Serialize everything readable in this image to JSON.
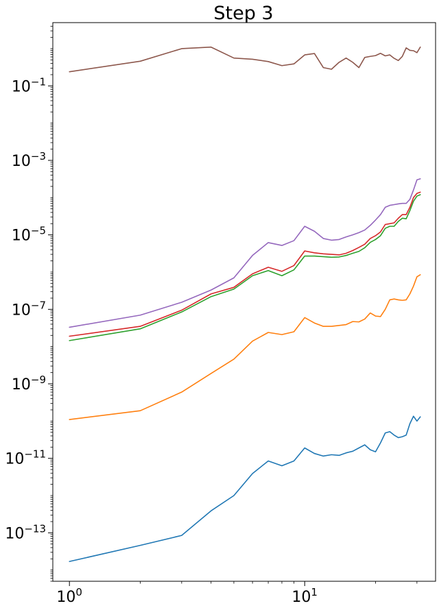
{
  "chart_data": {
    "type": "line",
    "title": "Step 3",
    "xlabel": "",
    "ylabel": "",
    "xscale": "log",
    "yscale": "log",
    "xlim": [
      0.85,
      36
    ],
    "ylim": [
      5e-15,
      5
    ],
    "grid": false,
    "legend": "none",
    "x_ticks": [
      {
        "value": 1,
        "base": "10",
        "exp": "0"
      },
      {
        "value": 10,
        "base": "10",
        "exp": "1"
      }
    ],
    "y_ticks": [
      {
        "value": 1e-13,
        "base": "10",
        "exp": "−13"
      },
      {
        "value": 1e-11,
        "base": "10",
        "exp": "−11"
      },
      {
        "value": 1e-09,
        "base": "10",
        "exp": "−9"
      },
      {
        "value": 1e-07,
        "base": "10",
        "exp": "−7"
      },
      {
        "value": 1e-05,
        "base": "10",
        "exp": "−5"
      },
      {
        "value": 0.001,
        "base": "10",
        "exp": "−3"
      },
      {
        "value": 0.1,
        "base": "10",
        "exp": "−1"
      }
    ],
    "x": [
      1,
      2,
      3,
      4,
      5,
      6,
      7,
      8,
      9,
      10,
      11,
      12,
      13,
      14,
      15,
      16,
      17,
      18,
      19,
      20,
      21,
      22,
      23,
      24,
      25,
      26,
      27,
      28,
      29,
      30,
      31
    ],
    "series": [
      {
        "color": "#1f77b4",
        "values": [
          1.7e-14,
          4.6e-14,
          8.5e-14,
          3.9e-13,
          1e-12,
          3.9e-12,
          8.5e-12,
          6.3e-12,
          8.5e-12,
          1.9e-11,
          1.35e-11,
          1.15e-11,
          1.25e-11,
          1.2e-11,
          1.4e-11,
          1.55e-11,
          1.9e-11,
          2.3e-11,
          1.7e-11,
          1.5e-11,
          2.6e-11,
          4.8e-11,
          5.2e-11,
          4.2e-11,
          3.6e-11,
          3.8e-11,
          4.2e-11,
          8.5e-11,
          1.35e-10,
          1e-10,
          1.3e-10
        ]
      },
      {
        "color": "#ff7f0e",
        "values": [
          1.1e-10,
          1.9e-10,
          6e-10,
          1.9e-09,
          4.6e-09,
          1.4e-08,
          2.4e-08,
          2.1e-08,
          2.5e-08,
          6e-08,
          4.3e-08,
          3.5e-08,
          3.5e-08,
          3.7e-08,
          3.9e-08,
          4.7e-08,
          4.6e-08,
          5.5e-08,
          8e-08,
          6.6e-08,
          6.4e-08,
          1e-07,
          1.8e-07,
          1.9e-07,
          1.8e-07,
          1.75e-07,
          1.8e-07,
          2.6e-07,
          4.2e-07,
          7.5e-07,
          8.5e-07
        ]
      },
      {
        "color": "#2ca02c",
        "values": [
          1.45e-08,
          3e-08,
          8.5e-08,
          2.2e-07,
          3.5e-07,
          8e-07,
          1.1e-06,
          8e-07,
          1.15e-06,
          2.7e-06,
          2.7e-06,
          2.6e-06,
          2.5e-06,
          2.55e-06,
          2.8e-06,
          3.2e-06,
          3.6e-06,
          4.5e-06,
          6.3e-06,
          7.5e-06,
          9.5e-06,
          1.5e-05,
          1.7e-05,
          1.7e-05,
          2.3e-05,
          2.8e-05,
          2.7e-05,
          4.5e-05,
          8e-05,
          0.00011,
          0.00012
        ]
      },
      {
        "color": "#d62728",
        "values": [
          1.9e-08,
          3.5e-08,
          9.5e-08,
          2.6e-07,
          3.9e-07,
          9e-07,
          1.35e-06,
          1.05e-06,
          1.5e-06,
          3.7e-06,
          3.3e-06,
          3.1e-06,
          3e-06,
          2.9e-06,
          3.2e-06,
          3.8e-06,
          4.6e-06,
          5.6e-06,
          8e-06,
          9.5e-06,
          1.2e-05,
          1.9e-05,
          2e-05,
          2.1e-05,
          2.8e-05,
          3.5e-05,
          3.5e-05,
          5.5e-05,
          0.0001,
          0.00013,
          0.00014
        ]
      },
      {
        "color": "#9467bd",
        "values": [
          3.3e-08,
          7e-08,
          1.55e-07,
          3.3e-07,
          7e-07,
          2.8e-06,
          6.2e-06,
          5.2e-06,
          7e-06,
          1.7e-05,
          1.25e-05,
          8e-06,
          7.2e-06,
          7.5e-06,
          8.8e-06,
          1e-05,
          1.15e-05,
          1.35e-05,
          1.8e-05,
          2.5e-05,
          3.5e-05,
          5.5e-05,
          6.2e-05,
          6.5e-05,
          6.8e-05,
          7e-05,
          7e-05,
          9e-05,
          0.00016,
          0.0003,
          0.00032
        ]
      },
      {
        "color": "#8c564b",
        "values": [
          0.24,
          0.46,
          1.0,
          1.1,
          0.56,
          0.52,
          0.45,
          0.35,
          0.39,
          0.68,
          0.74,
          0.31,
          0.28,
          0.43,
          0.56,
          0.43,
          0.31,
          0.58,
          0.62,
          0.65,
          0.75,
          0.64,
          0.68,
          0.55,
          0.48,
          0.62,
          1.05,
          0.9,
          0.88,
          0.78,
          1.1
        ]
      }
    ]
  }
}
